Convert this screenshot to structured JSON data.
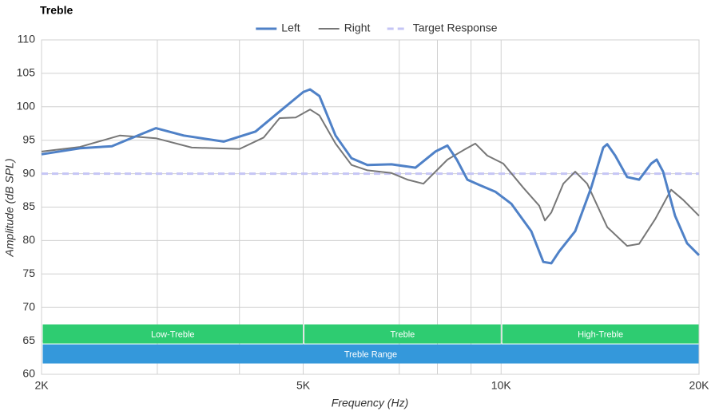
{
  "chart_data": {
    "type": "line",
    "title": "Treble",
    "xlabel": "Frequency (Hz)",
    "ylabel": "Amplitude (dB SPL)",
    "xscale": "log",
    "xlim": [
      2000,
      20000
    ],
    "xticks": [
      {
        "value": 2000,
        "label": "2K"
      },
      {
        "value": 5000,
        "label": "5K"
      },
      {
        "value": 10000,
        "label": "10K"
      },
      {
        "value": 20000,
        "label": "20K"
      }
    ],
    "x_gridlines": [
      3000,
      4000,
      7000,
      8000,
      9000
    ],
    "ylim": [
      60,
      110
    ],
    "yticks": [
      60,
      65,
      70,
      75,
      80,
      85,
      90,
      95,
      100,
      105,
      110
    ],
    "grid": true,
    "legend": "top",
    "series": [
      {
        "name": "Left",
        "color": "#4f81c7",
        "width": 3,
        "dashed": false,
        "x": [
          2000,
          2288,
          2558,
          2706,
          2985,
          3290,
          3785,
          4232,
          4604,
          5000,
          5122,
          5294,
          5600,
          5922,
          6262,
          6812,
          7410,
          7944,
          8288,
          8564,
          8884,
          9266,
          9800,
          10364,
          11114,
          11594,
          11922,
          12262,
          12964,
          13710,
          14300,
          14500,
          14912,
          15550,
          16216,
          16912,
          17244,
          17636,
          18392,
          19180,
          20000
        ],
        "values": [
          92.9,
          93.8,
          94.1,
          95.1,
          96.8,
          95.7,
          94.8,
          96.3,
          99.3,
          102.2,
          102.6,
          101.6,
          95.7,
          92.3,
          91.3,
          91.4,
          90.9,
          93.3,
          94.2,
          92.1,
          89.1,
          88.3,
          87.3,
          85.5,
          81.4,
          76.8,
          76.6,
          78.4,
          81.4,
          87.9,
          93.9,
          94.4,
          92.7,
          89.5,
          89.1,
          91.5,
          92.1,
          90.3,
          83.7,
          79.6,
          77.8
        ]
      },
      {
        "name": "Right",
        "color": "#777777",
        "width": 2,
        "dashed": false,
        "x": [
          2000,
          2288,
          2630,
          2985,
          3384,
          4002,
          4354,
          4604,
          4870,
          5122,
          5294,
          5600,
          5922,
          6262,
          6812,
          7204,
          7618,
          8288,
          8760,
          9136,
          9528,
          10078,
          10808,
          11430,
          11658,
          11922,
          12434,
          12964,
          13518,
          14500,
          15550,
          16216,
          17150,
          18138,
          18912,
          20000
        ],
        "values": [
          93.3,
          94.0,
          95.7,
          95.3,
          93.9,
          93.7,
          95.4,
          98.3,
          98.4,
          99.6,
          98.7,
          94.5,
          91.3,
          90.5,
          90.1,
          89.1,
          88.5,
          92.1,
          93.5,
          94.5,
          92.7,
          91.5,
          87.9,
          85.2,
          83.0,
          84.2,
          88.5,
          90.3,
          88.5,
          82.0,
          79.2,
          79.5,
          83.2,
          87.6,
          86.1,
          83.7
        ]
      },
      {
        "name": "Target Response",
        "color": "#c5c5f5",
        "width": 3,
        "dashed": true,
        "x": [
          2000,
          20000
        ],
        "values": [
          90,
          90
        ]
      }
    ],
    "bands": [
      {
        "label": "Low-Treble",
        "start": 2000,
        "end": 5000,
        "color": "#2ecc71",
        "row": 0
      },
      {
        "label": "Treble",
        "start": 5000,
        "end": 10000,
        "color": "#2ecc71",
        "row": 0
      },
      {
        "label": "High-Treble",
        "start": 10000,
        "end": 20000,
        "color": "#2ecc71",
        "row": 0
      },
      {
        "label": "Treble Range",
        "start": 2000,
        "end": 20000,
        "color": "#3498db",
        "row": 1
      }
    ]
  }
}
